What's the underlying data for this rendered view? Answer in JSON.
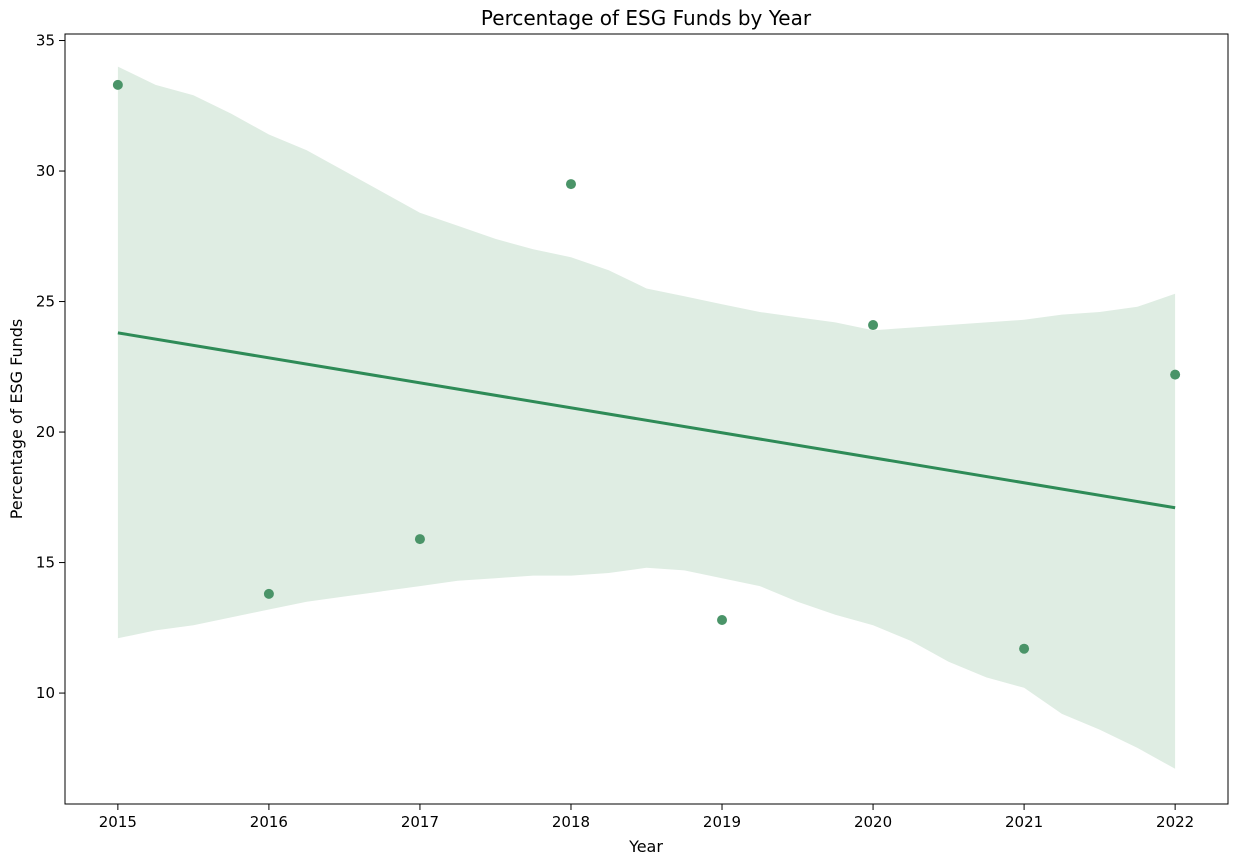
{
  "chart_data": {
    "type": "scatter",
    "title": "Percentage of ESG Funds by Year",
    "xlabel": "Year",
    "ylabel": "Percentage of ESG Funds",
    "xlim": [
      2014.65,
      2022.35
    ],
    "ylim": [
      5.75,
      35.25
    ],
    "xticks": [
      2015,
      2016,
      2017,
      2018,
      2019,
      2020,
      2021,
      2022
    ],
    "yticks": [
      10,
      15,
      20,
      25,
      30,
      35
    ],
    "grid": false,
    "points": {
      "x": [
        2015,
        2016,
        2017,
        2018,
        2019,
        2020,
        2021,
        2022
      ],
      "y": [
        33.3,
        13.8,
        15.9,
        29.5,
        12.8,
        24.1,
        11.7,
        22.2
      ]
    },
    "regression_line": {
      "x": [
        2015,
        2022
      ],
      "y": [
        23.8,
        17.1
      ]
    },
    "confidence_band": {
      "x": [
        2015,
        2015.25,
        2015.5,
        2015.75,
        2016,
        2016.25,
        2016.5,
        2016.75,
        2017,
        2017.25,
        2017.5,
        2017.75,
        2018,
        2018.25,
        2018.5,
        2018.75,
        2019,
        2019.25,
        2019.5,
        2019.75,
        2020,
        2020.25,
        2020.5,
        2020.75,
        2021,
        2021.25,
        2021.5,
        2021.75,
        2022
      ],
      "upper": [
        34.0,
        33.3,
        32.9,
        32.2,
        31.4,
        30.8,
        30.0,
        29.2,
        28.4,
        27.9,
        27.4,
        27.0,
        26.7,
        26.2,
        25.5,
        25.2,
        24.9,
        24.6,
        24.4,
        24.2,
        23.9,
        24.0,
        24.1,
        24.2,
        24.3,
        24.5,
        24.6,
        24.8,
        25.3
      ],
      "lower": [
        12.1,
        12.4,
        12.6,
        12.9,
        13.2,
        13.5,
        13.7,
        13.9,
        14.1,
        14.3,
        14.4,
        14.5,
        14.5,
        14.6,
        14.8,
        14.7,
        14.4,
        14.1,
        13.5,
        13.0,
        12.6,
        12.0,
        11.2,
        10.6,
        10.2,
        9.2,
        8.6,
        7.9,
        7.1
      ]
    },
    "colors": {
      "point": "#4a9468",
      "line": "#2e8b57",
      "band": "#dfede3"
    }
  }
}
